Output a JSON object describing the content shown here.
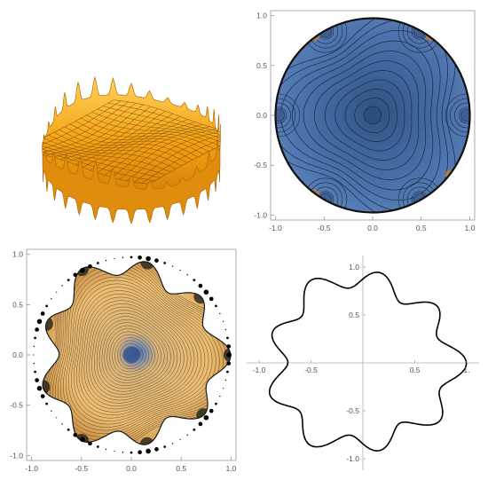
{
  "chart_data": [
    {
      "type": "surface3d",
      "panel": "top-left",
      "description_colors": {
        "base": "#f5a418",
        "mesh": "#7a4a05"
      },
      "mesh_lines": 18,
      "boundary_spikes": 30
    },
    {
      "type": "contour",
      "panel": "top-right",
      "domain": "unit-disk",
      "xlim": [
        -1.05,
        1.05
      ],
      "ylim": [
        -1.05,
        1.05
      ],
      "xticks": [
        "-1.0",
        "-0.5",
        "0.0",
        "0.5",
        "1.0"
      ],
      "yticks": [
        "-1.0",
        "-0.5",
        "0.0",
        "0.5",
        "1.0"
      ],
      "tick_values": [
        -1.0,
        -0.5,
        0.0,
        0.5,
        1.0
      ],
      "colors": {
        "fill": "#4a6ea8",
        "dark": "#2d4d80",
        "line": "#1c2a3e",
        "hot": "#c87a3a"
      },
      "central_minimum": [
        0.0,
        0.0
      ]
    },
    {
      "type": "contour",
      "panel": "bottom-left",
      "domain": "star-shaped-region",
      "xlim": [
        -1.05,
        1.05
      ],
      "ylim": [
        -1.05,
        1.05
      ],
      "xticks": [
        "-1.0",
        "-0.5",
        "0.0",
        "0.5",
        "1.0"
      ],
      "yticks": [
        "-1.0",
        "-0.5",
        "0.0",
        "0.5",
        "1.0"
      ],
      "tick_values": [
        -1.0,
        -0.5,
        0.0,
        0.5,
        1.0
      ],
      "colors": {
        "fill": "#e9b870",
        "center": "#4a74b0",
        "line": "#3a2a18",
        "edge": "#1a1a1a"
      },
      "central_minimum": [
        0.0,
        0.0
      ]
    },
    {
      "type": "line",
      "panel": "bottom-right",
      "curve": "closed boundary curve, 9-fold lobes",
      "xticks": [
        "-1.0",
        "-0.5",
        "0.5",
        "1."
      ],
      "xtick_values": [
        -1.0,
        -0.5,
        0.5,
        1.0
      ],
      "yticks": [
        "1.0",
        "0.5",
        "-0.5",
        "-1.0"
      ],
      "ytick_values": [
        1.0,
        0.5,
        -0.5,
        -1.0
      ],
      "xlim": [
        -1.12,
        1.12
      ],
      "ylim": [
        -1.12,
        1.12
      ],
      "line_color": "#000000"
    }
  ]
}
